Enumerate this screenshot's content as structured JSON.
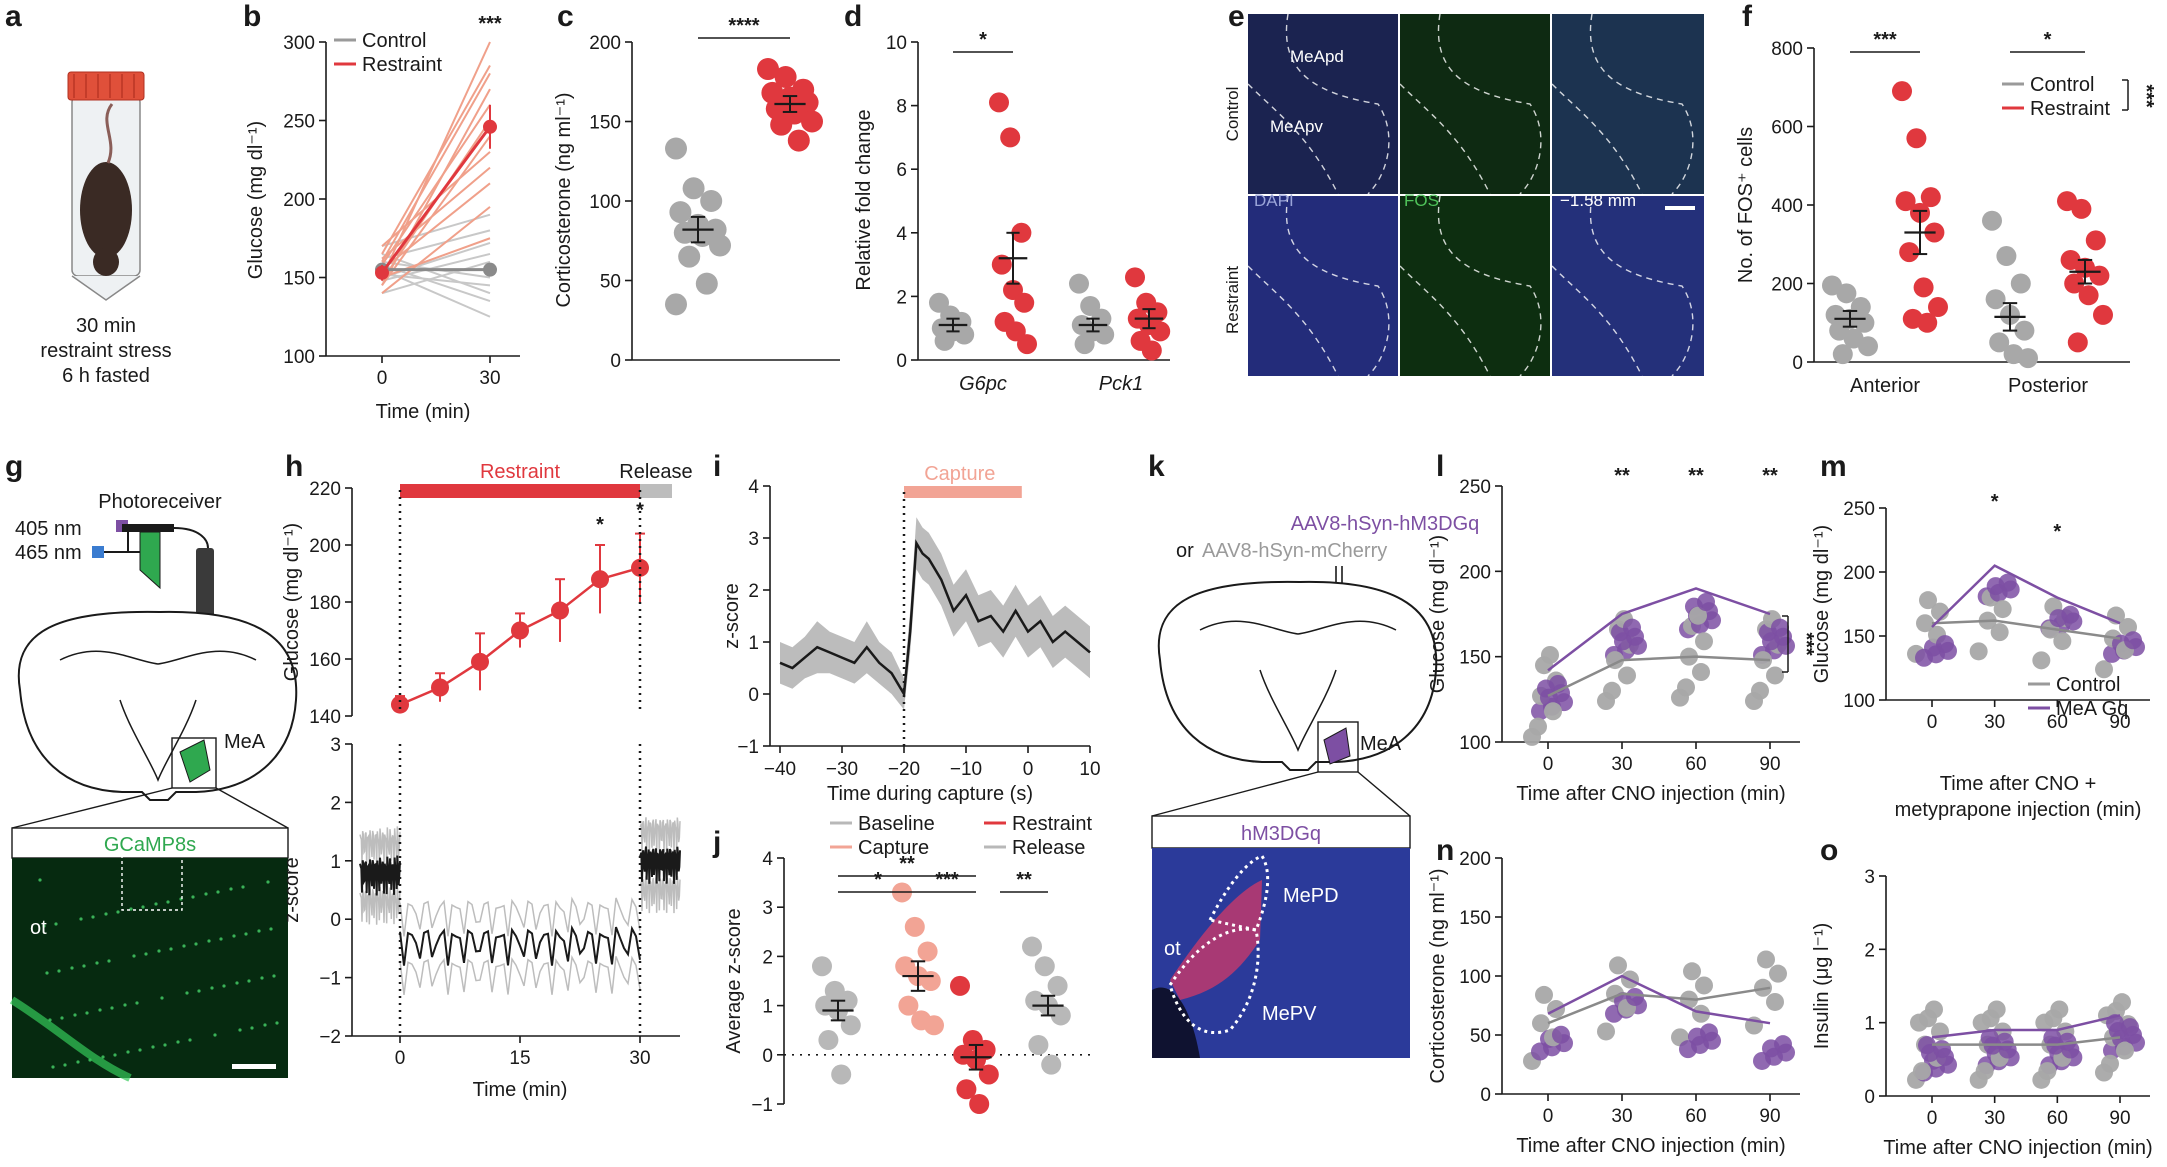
{
  "panels": {
    "a": {
      "label": "a",
      "caption": [
        "30 min",
        "restraint stress",
        "6 h fasted"
      ]
    },
    "b": {
      "label": "b"
    },
    "c": {
      "label": "c"
    },
    "d": {
      "label": "d"
    },
    "e": {
      "label": "e",
      "row_labels": [
        "Control",
        "Restraint"
      ],
      "regions": [
        "MeApd",
        "MeApv"
      ],
      "channels": [
        "DAPI",
        "FOS"
      ],
      "coord": "−1.58 mm"
    },
    "f": {
      "label": "f"
    },
    "g": {
      "label": "g",
      "photoreceiver": "Photoreceiver",
      "wl1": "405 nm",
      "wl2": "465 nm",
      "region": "MeA",
      "image_title": "GCaMP8s",
      "ot": "ot"
    },
    "h": {
      "label": "h",
      "bar_restraint": "Restraint",
      "bar_release": "Release"
    },
    "i": {
      "label": "i",
      "bar_capture": "Capture"
    },
    "j": {
      "label": "j"
    },
    "k": {
      "label": "k",
      "virus1": "AAV8-hSyn-hM3DGq",
      "virus_or": "or",
      "virus2": "AAV8-hSyn-mCherry",
      "region": "MeA",
      "image_title": "hM3DGq",
      "ot": "ot",
      "mepd": "MePD",
      "mepv": "MePV"
    },
    "l": {
      "label": "l"
    },
    "m": {
      "label": "m"
    },
    "n": {
      "label": "n"
    },
    "o": {
      "label": "o"
    }
  },
  "colors": {
    "control": "#9a9a9a",
    "restraint": "#e0383e",
    "restraint_light": "#f0a08a",
    "capture": "#f2a495",
    "mea_gq": "#7d4fa3",
    "gcamp": "#2fa84f",
    "dapi": "#28347a",
    "fos": "#1f6b2a",
    "black": "#1a1a1a"
  },
  "chart_data": [
    {
      "panel": "b",
      "type": "line",
      "x": [
        0,
        30
      ],
      "xlabel": "Time (min)",
      "ylabel": "Glucose (mg dl⁻¹)",
      "ylim": [
        100,
        300
      ],
      "yticks": [
        100,
        150,
        200,
        250,
        300
      ],
      "xticks": [
        0,
        30
      ],
      "series": [
        {
          "name": "Control",
          "mean": [
            155,
            155
          ]
        },
        {
          "name": "Restraint",
          "mean": [
            153,
            246
          ],
          "sem": [
            5,
            14
          ]
        }
      ],
      "annotations": [
        "***"
      ],
      "individual_control": [
        [
          150,
          172
        ],
        [
          155,
          125
        ],
        [
          165,
          140
        ],
        [
          140,
          160
        ],
        [
          170,
          190
        ],
        [
          160,
          150
        ],
        [
          148,
          165
        ],
        [
          158,
          135
        ],
        [
          162,
          180
        ],
        [
          152,
          145
        ]
      ],
      "individual_restraint": [
        [
          150,
          300
        ],
        [
          145,
          270
        ],
        [
          160,
          280
        ],
        [
          155,
          210
        ],
        [
          148,
          250
        ],
        [
          170,
          230
        ],
        [
          140,
          195
        ],
        [
          165,
          285
        ],
        [
          158,
          260
        ],
        [
          150,
          175
        ],
        [
          162,
          220
        ],
        [
          145,
          240
        ]
      ]
    },
    {
      "panel": "c",
      "type": "scatter",
      "categories": [
        "Control",
        "Restraint"
      ],
      "ylabel": "Corticosterone (ng ml⁻¹)",
      "ylim": [
        0,
        200
      ],
      "yticks": [
        0,
        50,
        100,
        150,
        200
      ],
      "series": [
        {
          "name": "Control",
          "values": [
            133,
            108,
            100,
            93,
            85,
            82,
            80,
            78,
            72,
            65,
            48,
            35
          ],
          "mean": 82,
          "sem": 8
        },
        {
          "name": "Restraint",
          "values": [
            183,
            178,
            170,
            168,
            165,
            162,
            158,
            155,
            150,
            148,
            138
          ],
          "mean": 161,
          "sem": 5
        }
      ],
      "annotations": [
        "****"
      ]
    },
    {
      "panel": "d",
      "type": "scatter",
      "categories": [
        "G6pc",
        "Pck1"
      ],
      "ylabel": "Relative fold change",
      "ylim": [
        0,
        10
      ],
      "yticks": [
        0,
        2,
        4,
        6,
        8,
        10
      ],
      "series": [
        {
          "name": "Control",
          "groups": [
            [
              1.8,
              1.4,
              1.2,
              1.0,
              0.9,
              0.8,
              0.6
            ],
            [
              2.4,
              1.7,
              1.3,
              1.1,
              0.9,
              0.8,
              0.5
            ]
          ],
          "mean": [
            1.1,
            1.1
          ],
          "sem": [
            0.2,
            0.2
          ]
        },
        {
          "name": "Restraint",
          "groups": [
            [
              8.1,
              7.0,
              4.0,
              3.0,
              2.2,
              1.8,
              1.2,
              0.9,
              0.5
            ],
            [
              2.6,
              1.8,
              1.5,
              1.3,
              1.1,
              0.9,
              0.6,
              0.3
            ]
          ],
          "mean": [
            3.2,
            1.3
          ],
          "sem": [
            0.8,
            0.3
          ]
        }
      ],
      "annotations": [
        "*"
      ]
    },
    {
      "panel": "f",
      "type": "scatter",
      "categories": [
        "Anterior",
        "Posterior"
      ],
      "ylabel": "No. of FOS⁺ cells",
      "ylim": [
        0,
        800
      ],
      "yticks": [
        0,
        200,
        400,
        600,
        800
      ],
      "series": [
        {
          "name": "Control",
          "groups": [
            [
              195,
              175,
              140,
              120,
              110,
              100,
              80,
              60,
              40,
              20
            ],
            [
              360,
              270,
              200,
              160,
              120,
              80,
              50,
              20,
              10
            ]
          ],
          "mean": [
            110,
            115
          ],
          "sem": [
            20,
            35
          ]
        },
        {
          "name": "Restraint",
          "groups": [
            [
              690,
              570,
              420,
              410,
              380,
              330,
              280,
              190,
              140,
              110,
              100
            ],
            [
              410,
              390,
              310,
              260,
              240,
              220,
              200,
              170,
              120,
              50
            ]
          ],
          "mean": [
            330,
            230
          ],
          "sem": [
            55,
            30
          ]
        }
      ],
      "annotations": [
        "***",
        "*",
        "***"
      ]
    },
    {
      "panel": "h-top",
      "type": "line",
      "x": [
        0,
        5,
        10,
        15,
        20,
        25,
        30
      ],
      "xlabel": "",
      "ylabel": "Glucose (mg dl⁻¹)",
      "ylim": [
        140,
        220
      ],
      "yticks": [
        140,
        160,
        180,
        200,
        220
      ],
      "series": [
        {
          "name": "Restraint",
          "values": [
            144,
            150,
            159,
            170,
            177,
            188,
            192
          ],
          "sem": [
            3,
            5,
            10,
            6,
            11,
            12,
            12
          ]
        }
      ],
      "annotations": [
        "*",
        "*"
      ]
    },
    {
      "panel": "h-bottom",
      "type": "line",
      "xlabel": "Time (min)",
      "ylabel": "z-score",
      "xlim": [
        -5,
        35
      ],
      "ylim": [
        -2,
        3
      ],
      "xticks": [
        0,
        15,
        30
      ],
      "yticks": [
        -2,
        -1,
        0,
        1,
        2,
        3
      ],
      "series": [
        {
          "name": "z-score",
          "segments": [
            {
              "x": [
                -5,
                0
              ],
              "level": 0.8
            },
            {
              "x": [
                0,
                30
              ],
              "level": -0.4
            },
            {
              "x": [
                30,
                35
              ],
              "level": 1.0
            }
          ]
        }
      ]
    },
    {
      "panel": "i",
      "type": "line",
      "xlabel": "Time during capture (s)",
      "ylabel": "z-score",
      "xlim": [
        -40,
        10
      ],
      "ylim": [
        -1,
        4
      ],
      "xticks": [
        -40,
        -30,
        -20,
        -10,
        0,
        10
      ],
      "yticks": [
        -1,
        0,
        1,
        2,
        3,
        4
      ],
      "series": [
        {
          "name": "mean",
          "x": [
            -40,
            -38,
            -36,
            -34,
            -32,
            -30,
            -28,
            -26,
            -24,
            -22,
            -20,
            -19,
            -18,
            -17,
            -16,
            -14,
            -12,
            -10,
            -8,
            -6,
            -4,
            -2,
            0,
            2,
            4,
            6,
            8,
            10
          ],
          "values": [
            0.6,
            0.5,
            0.7,
            0.9,
            0.8,
            0.7,
            0.6,
            0.9,
            0.6,
            0.4,
            0.0,
            1.2,
            2.9,
            2.7,
            2.6,
            2.2,
            1.6,
            1.9,
            1.4,
            1.5,
            1.2,
            1.6,
            1.2,
            1.4,
            1.0,
            1.2,
            1.0,
            0.8
          ],
          "sem": [
            0.4,
            0.4,
            0.4,
            0.5,
            0.4,
            0.4,
            0.4,
            0.5,
            0.4,
            0.4,
            0.3,
            0.4,
            0.5,
            0.5,
            0.5,
            0.5,
            0.5,
            0.5,
            0.5,
            0.5,
            0.5,
            0.5,
            0.5,
            0.5,
            0.5,
            0.5,
            0.5,
            0.5
          ]
        }
      ]
    },
    {
      "panel": "j",
      "type": "scatter",
      "categories": [
        "Baseline",
        "Capture",
        "Restraint",
        "Release"
      ],
      "ylabel": "Average z-score",
      "ylim": [
        -1,
        4
      ],
      "yticks": [
        -1,
        0,
        1,
        2,
        3,
        4
      ],
      "legend": [
        "Baseline",
        "Capture",
        "Restraint",
        "Release"
      ],
      "series": [
        {
          "name": "Baseline",
          "values": [
            1.8,
            1.3,
            1.1,
            1.0,
            0.9,
            0.6,
            0.3,
            -0.4
          ],
          "mean": 0.9,
          "sem": 0.2
        },
        {
          "name": "Capture",
          "values": [
            3.3,
            2.6,
            2.1,
            1.8,
            1.6,
            1.5,
            1.0,
            0.7,
            0.6
          ],
          "mean": 1.6,
          "sem": 0.3
        },
        {
          "name": "Restraint",
          "values": [
            1.4,
            0.3,
            0.1,
            0.0,
            -0.1,
            -0.4,
            -0.7,
            -1.0
          ],
          "mean": -0.05,
          "sem": 0.25
        },
        {
          "name": "Release",
          "values": [
            2.2,
            1.8,
            1.4,
            1.1,
            1.0,
            0.8,
            0.2,
            -0.2
          ],
          "mean": 1.0,
          "sem": 0.2
        }
      ],
      "annotations": [
        "*",
        "**",
        "***",
        "**"
      ]
    },
    {
      "panel": "l",
      "type": "scatter",
      "x": [
        0,
        30,
        60,
        90
      ],
      "xlabel": "Time after CNO injection (min)",
      "ylabel": "Glucose (mg dl⁻¹)",
      "ylim": [
        100,
        250
      ],
      "yticks": [
        100,
        150,
        200,
        250
      ],
      "series": [
        {
          "name": "Control",
          "mean": [
            127,
            148,
            150,
            148
          ]
        },
        {
          "name": "MeA Gq",
          "mean": [
            142,
            175,
            190,
            175
          ]
        }
      ],
      "annotations": [
        "**",
        "**",
        "**",
        "***"
      ]
    },
    {
      "panel": "m",
      "type": "scatter",
      "x": [
        0,
        30,
        60,
        90
      ],
      "xlabel": "Time after CNO + metyprapone injection (min)",
      "ylabel": "Glucose (mg dl⁻¹)",
      "ylim": [
        100,
        250
      ],
      "yticks": [
        100,
        150,
        200,
        250
      ],
      "legend": [
        "Control",
        "MeA Gq"
      ],
      "series": [
        {
          "name": "Control",
          "mean": [
            160,
            162,
            155,
            148
          ]
        },
        {
          "name": "MeA Gq",
          "mean": [
            157,
            205,
            180,
            160
          ]
        }
      ],
      "annotations": [
        "*",
        "*"
      ]
    },
    {
      "panel": "n",
      "type": "scatter",
      "x": [
        0,
        30,
        60,
        90
      ],
      "xlabel": "Time after CNO injection (min)",
      "ylabel": "Corticosterone (ng ml⁻¹)",
      "ylim": [
        0,
        200
      ],
      "yticks": [
        0,
        50,
        100,
        150,
        200
      ],
      "series": [
        {
          "name": "Control",
          "mean": [
            60,
            85,
            80,
            90
          ]
        },
        {
          "name": "MeA Gq",
          "mean": [
            68,
            100,
            70,
            60
          ]
        }
      ]
    },
    {
      "panel": "o",
      "type": "scatter",
      "x": [
        0,
        30,
        60,
        90
      ],
      "xlabel": "Time after CNO injection (min)",
      "ylabel": "Insulin (μg l⁻¹)",
      "ylim": [
        0,
        3
      ],
      "yticks": [
        0,
        1,
        2,
        3
      ],
      "series": [
        {
          "name": "Control",
          "mean": [
            0.7,
            0.7,
            0.7,
            0.8
          ]
        },
        {
          "name": "MeA Gq",
          "mean": [
            0.8,
            0.9,
            0.9,
            1.1
          ]
        }
      ]
    }
  ],
  "text": {
    "b_legend_control": "Control",
    "b_legend_restraint": "Restraint",
    "f_legend_control": "Control",
    "f_legend_restraint": "Restraint",
    "m_legend_control": "Control",
    "m_legend_gq": "MeA Gq",
    "j_leg_baseline": "Baseline",
    "j_leg_capture": "Capture",
    "j_leg_restraint": "Restraint",
    "j_leg_release": "Release",
    "g_scalebar": ""
  }
}
